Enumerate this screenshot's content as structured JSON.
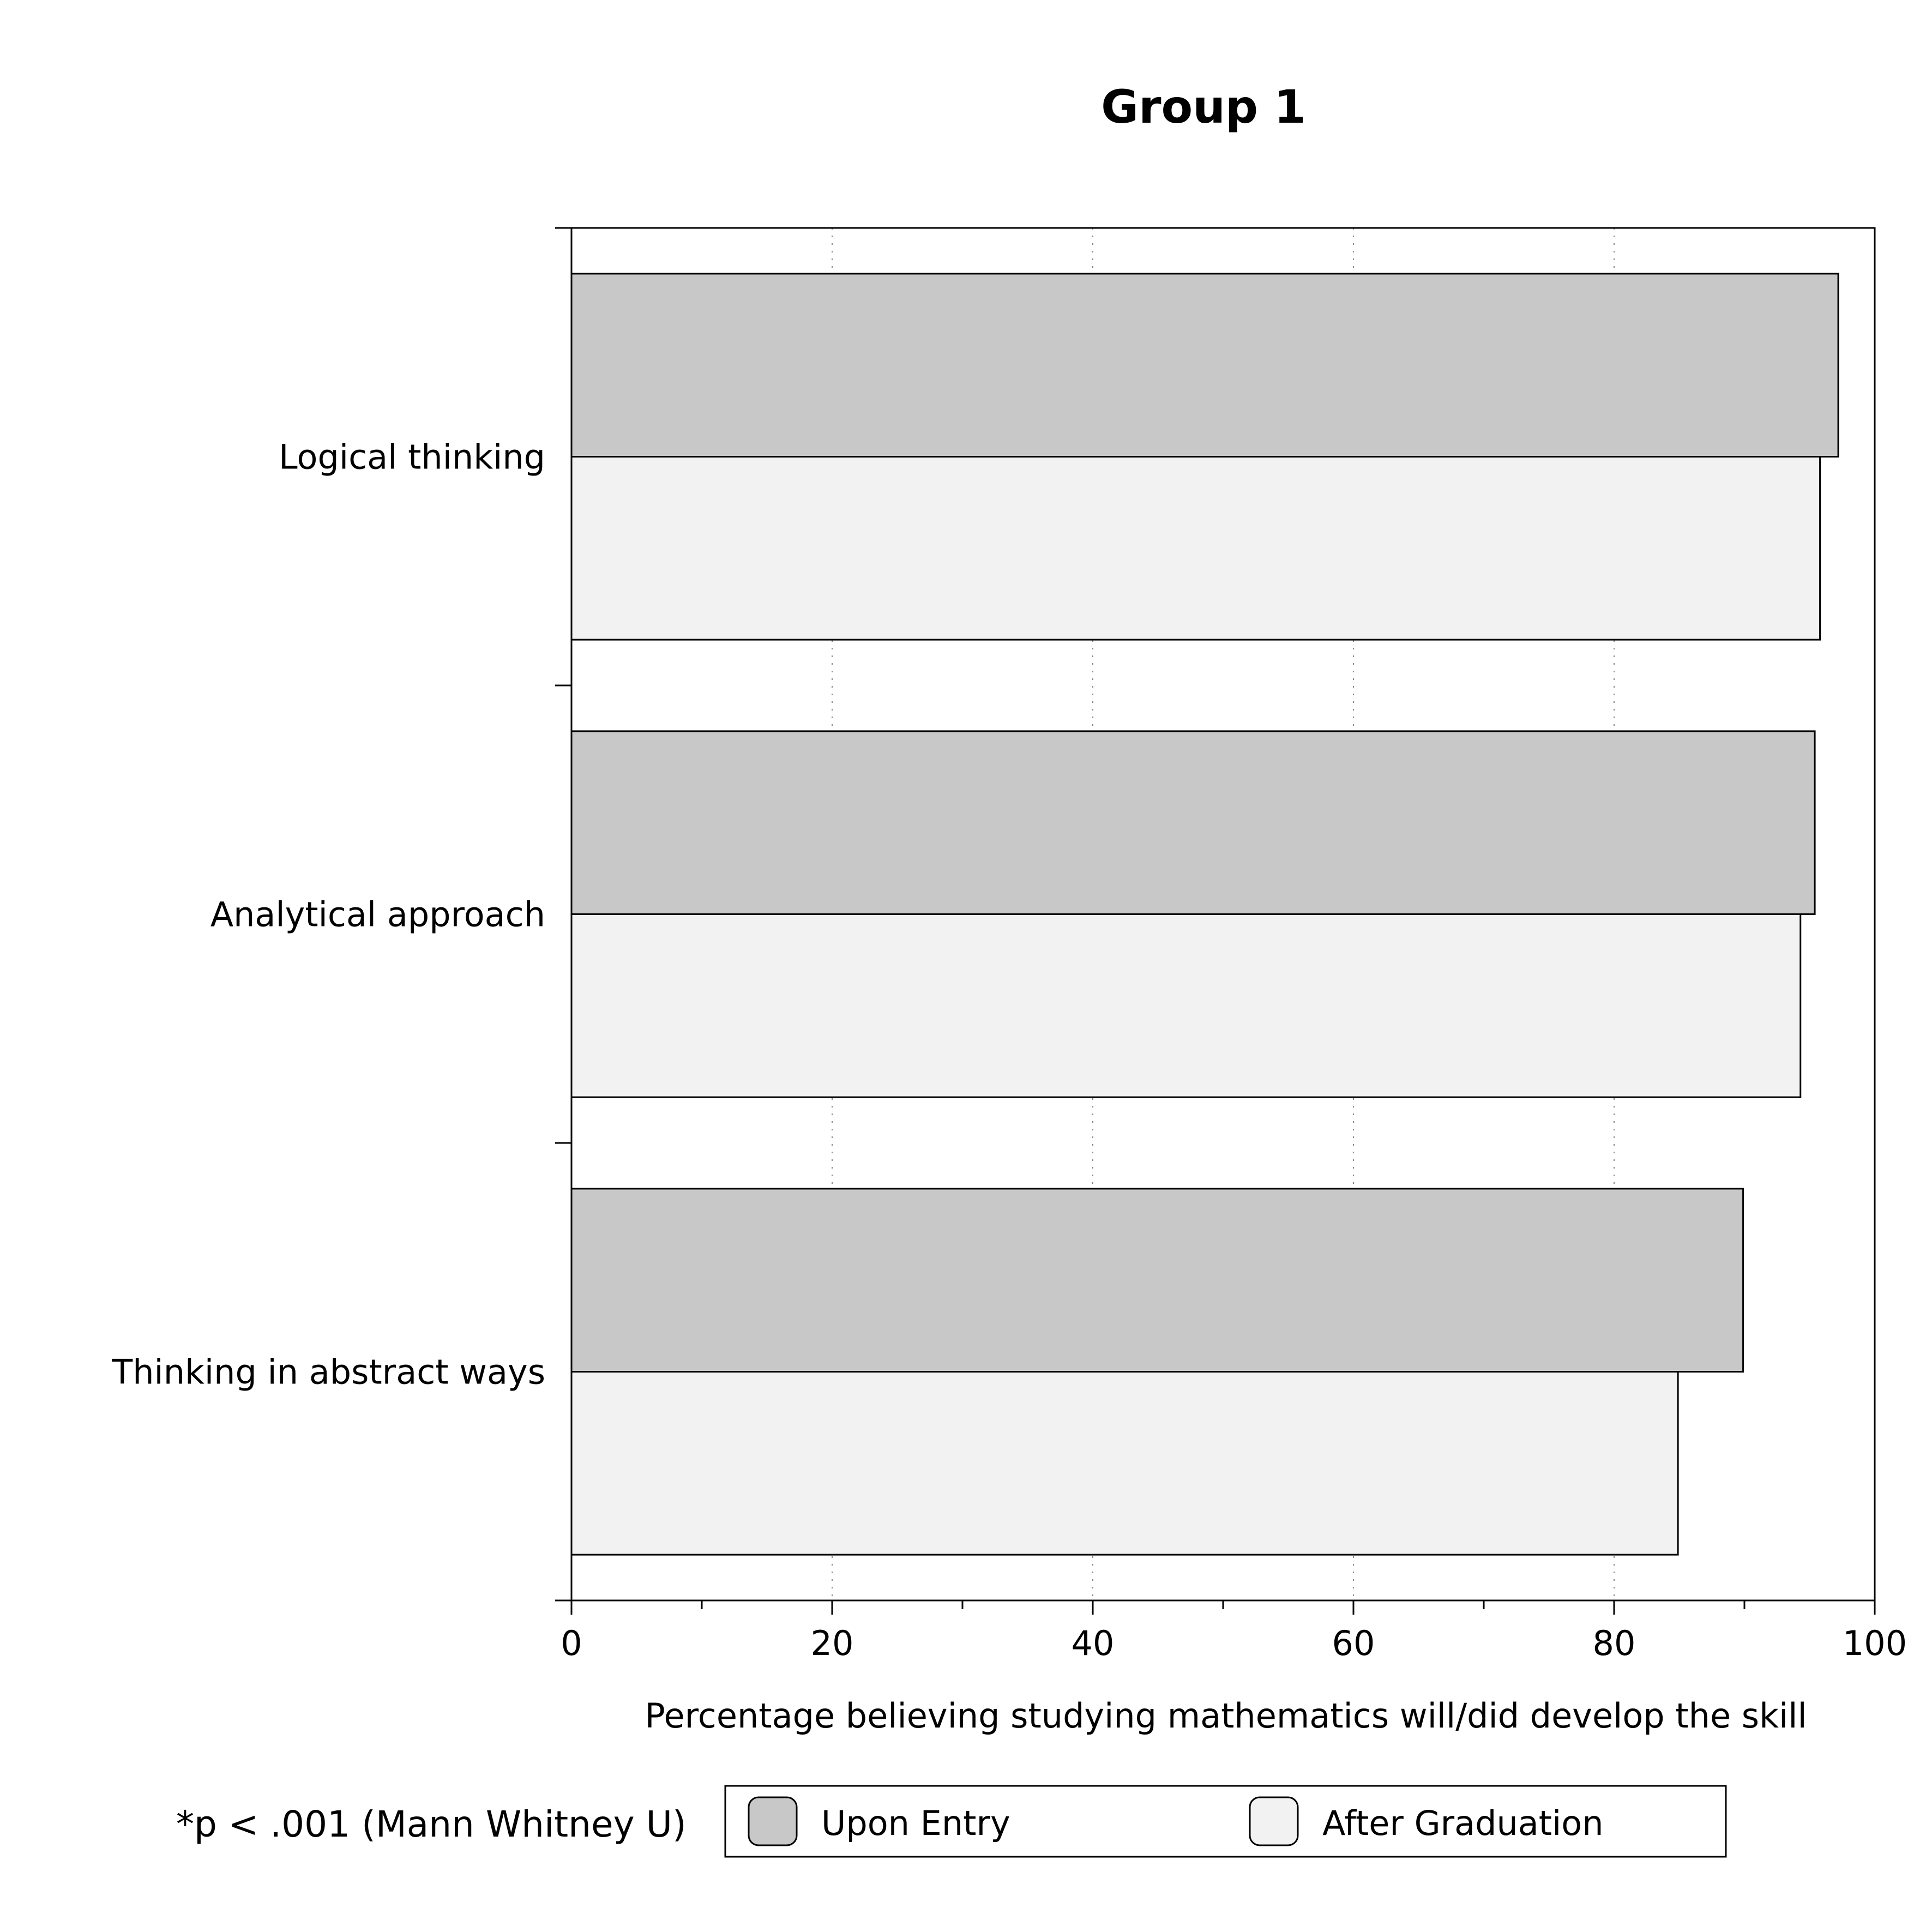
{
  "chart_data": {
    "type": "bar",
    "orientation": "horizontal",
    "title": "Group 1",
    "xlabel": "Percentage believing studying mathematics will/did develop the skill",
    "ylabel": "",
    "xlim": [
      0,
      100
    ],
    "x_ticks": [
      "0",
      "20",
      "40",
      "60",
      "80",
      "100"
    ],
    "grid": "vertical dotted at major ticks",
    "categories": [
      "Logical thinking",
      "Analytical approach",
      "Thinking in abstract ways"
    ],
    "series": [
      {
        "name": "Upon Entry",
        "color": "#c8c8c8",
        "values": [
          97.2,
          95.4,
          89.9
        ]
      },
      {
        "name": "After Graduation",
        "color": "#f2f2f2",
        "values": [
          95.8,
          94.3,
          84.9
        ]
      }
    ],
    "legend": {
      "placement": "bottom"
    },
    "note": "*p < .001 (Mann Whitney U)"
  }
}
